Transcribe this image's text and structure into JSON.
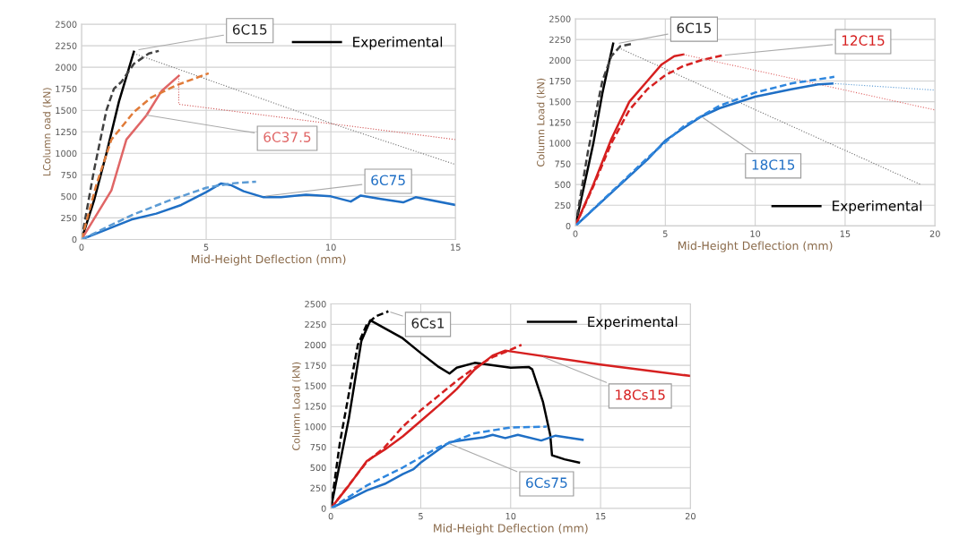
{
  "chart_data": [
    {
      "type": "line",
      "xlabel": "Mid-Height Deflection (mm)",
      "ylabel": "LColumn oad (kN)",
      "xlim": [
        0,
        15
      ],
      "xticks": [
        0,
        5,
        10,
        15
      ],
      "ylim": [
        0,
        2500
      ],
      "yticks": [
        0,
        250,
        500,
        750,
        1000,
        1250,
        1500,
        1750,
        2000,
        2250,
        2500
      ],
      "grid": true,
      "legend": "top right",
      "marker": "none",
      "series": [
        {
          "name": "Experimental",
          "color": "#000000",
          "line_style": "solid",
          "x": [
            0,
            0.5,
            1,
            1.5,
            2.1
          ],
          "values": [
            0,
            450,
            1000,
            1600,
            2180
          ]
        },
        {
          "color": "#404040",
          "line_style": "dashed",
          "x": [
            0,
            0.5,
            1,
            1.3,
            1.6,
            2.1,
            2.7,
            3.1
          ],
          "values": [
            0,
            800,
            1500,
            1750,
            1830,
            2040,
            2160,
            2190
          ]
        },
        {
          "color": "#707070",
          "line_style": "dotted",
          "x": [
            2.2,
            10,
            15
          ],
          "values": [
            2150,
            1350,
            870
          ]
        },
        {
          "color": "#e06666",
          "line_style": "solid",
          "x": [
            0,
            1.2,
            1.8,
            2.6,
            3.2,
            3.9
          ],
          "values": [
            0,
            570,
            1160,
            1440,
            1720,
            1900
          ]
        },
        {
          "color": "#e07b39",
          "line_style": "dashed",
          "x": [
            0,
            0.6,
            1.2,
            2.1,
            2.8,
            3.8,
            5.1
          ],
          "values": [
            0,
            640,
            1160,
            1480,
            1650,
            1790,
            1930
          ]
        },
        {
          "color": "#d05050",
          "line_style": "dotted",
          "x": [
            3.9,
            3.9,
            15
          ],
          "values": [
            1900,
            1570,
            1160
          ]
        },
        {
          "color": "#1f6fc5",
          "line_style": "solid",
          "x": [
            0,
            2,
            3,
            4,
            5,
            5.6,
            6,
            6.5,
            7.3,
            8,
            9,
            10,
            10.8,
            11.2,
            12,
            12.9,
            13.4,
            15
          ],
          "values": [
            0,
            230,
            300,
            400,
            550,
            650,
            630,
            560,
            490,
            490,
            520,
            500,
            440,
            510,
            470,
            430,
            490,
            400
          ]
        },
        {
          "color": "#5b9bd5",
          "line_style": "dashed",
          "x": [
            0,
            2,
            3.5,
            5,
            6,
            7
          ],
          "values": [
            0,
            280,
            450,
            600,
            650,
            670
          ]
        }
      ],
      "annotations": [
        {
          "text": "6C15",
          "x": 2.2,
          "y": 2200
        },
        {
          "text": "6C37.5",
          "x": 2.5,
          "y": 1450
        },
        {
          "text": "6C75",
          "x": 7.3,
          "y": 500
        }
      ]
    },
    {
      "type": "line",
      "xlabel": "Mid-Height Deflection (mm)",
      "ylabel": "Column Load (kN)",
      "xlim": [
        0,
        20
      ],
      "xticks": [
        0,
        5,
        10,
        15,
        20
      ],
      "ylim": [
        0,
        2500
      ],
      "yticks": [
        0,
        250,
        500,
        750,
        1000,
        1250,
        1500,
        1750,
        2000,
        2250,
        2500
      ],
      "grid": true,
      "legend": "bottom right",
      "marker": "none",
      "series": [
        {
          "name": "Experimental",
          "color": "#000000",
          "line_style": "solid",
          "x": [
            0,
            1,
            1.5,
            2.1
          ],
          "values": [
            0,
            1000,
            1600,
            2200
          ]
        },
        {
          "color": "#404040",
          "line_style": "dashed",
          "x": [
            0,
            0.7,
            1.5,
            2,
            2.5,
            3.2
          ],
          "values": [
            0,
            900,
            1750,
            2050,
            2170,
            2200
          ]
        },
        {
          "color": "#707070",
          "line_style": "dotted",
          "x": [
            2.4,
            19.2
          ],
          "values": [
            2150,
            500
          ]
        },
        {
          "color": "#d62020",
          "line_style": "solid",
          "x": [
            0,
            1,
            2,
            3,
            4,
            4.8,
            5.5,
            6
          ],
          "values": [
            0,
            500,
            1050,
            1500,
            1750,
            1950,
            2050,
            2070
          ]
        },
        {
          "color": "#d62020",
          "line_style": "dashed",
          "x": [
            0,
            1,
            2,
            3,
            4,
            5,
            6,
            7,
            8.2
          ],
          "values": [
            0,
            480,
            1000,
            1400,
            1650,
            1820,
            1930,
            2000,
            2060
          ]
        },
        {
          "color": "#e06666",
          "line_style": "dotted",
          "x": [
            6,
            20
          ],
          "values": [
            2070,
            1400
          ]
        },
        {
          "color": "#1f6fc5",
          "line_style": "solid",
          "x": [
            0,
            2,
            4,
            5,
            6,
            7,
            8,
            10,
            12,
            13.5,
            14.3
          ],
          "values": [
            0,
            400,
            800,
            1030,
            1180,
            1320,
            1420,
            1560,
            1650,
            1710,
            1720
          ]
        },
        {
          "color": "#2e86de",
          "line_style": "dashed",
          "x": [
            0,
            4,
            6,
            8,
            10,
            12,
            14.4
          ],
          "values": [
            0,
            820,
            1200,
            1450,
            1610,
            1720,
            1800
          ]
        },
        {
          "color": "#5b9bd5",
          "line_style": "dotted",
          "x": [
            14.3,
            20
          ],
          "values": [
            1720,
            1640
          ]
        }
      ],
      "annotations": [
        {
          "text": "6C15",
          "x": 2.3,
          "y": 2200
        },
        {
          "text": "12C15",
          "x": 8.2,
          "y": 2060
        },
        {
          "text": "18C15",
          "x": 7,
          "y": 1320
        }
      ]
    },
    {
      "type": "line",
      "xlabel": "Mid-Height Deflection (mm)",
      "ylabel": "Column Load (kN)",
      "xlim": [
        0,
        20
      ],
      "xticks": [
        0,
        5,
        10,
        15,
        20
      ],
      "ylim": [
        0,
        2500
      ],
      "yticks": [
        0,
        250,
        500,
        750,
        1000,
        1250,
        1500,
        1750,
        2000,
        2250,
        2500
      ],
      "grid": true,
      "legend": "top right",
      "marker": "none",
      "series": [
        {
          "name": "Experimental",
          "color": "#000000",
          "line_style": "solid",
          "x": [
            0,
            1,
            1.7,
            2.2,
            4,
            5,
            6,
            6.6,
            7,
            8,
            9,
            10,
            11,
            11.2,
            11.8,
            12.2,
            12.3,
            13,
            13.8
          ],
          "values": [
            0,
            1100,
            2050,
            2300,
            2080,
            1900,
            1730,
            1650,
            1720,
            1780,
            1750,
            1720,
            1730,
            1700,
            1300,
            900,
            650,
            600,
            560
          ]
        },
        {
          "color": "#000000",
          "line_style": "dashed",
          "x": [
            0,
            0.5,
            1,
            1.5,
            2,
            2.5,
            3.2
          ],
          "values": [
            0,
            800,
            1400,
            2000,
            2250,
            2350,
            2410
          ]
        },
        {
          "color": "#d62020",
          "line_style": "solid",
          "x": [
            0,
            1,
            2,
            3,
            4,
            5,
            6,
            7,
            8,
            9,
            9.7,
            15,
            20
          ],
          "values": [
            0,
            280,
            580,
            720,
            880,
            1070,
            1260,
            1460,
            1700,
            1870,
            1930,
            1760,
            1620
          ]
        },
        {
          "color": "#d62020",
          "line_style": "dashed",
          "x": [
            0,
            2,
            3,
            4,
            5,
            6,
            7,
            8,
            9,
            10,
            10.6
          ],
          "values": [
            0,
            570,
            750,
            1000,
            1200,
            1380,
            1560,
            1720,
            1850,
            1940,
            2000
          ]
        },
        {
          "color": "#1f6fc5",
          "line_style": "solid",
          "x": [
            0,
            2,
            3,
            4,
            4.6,
            5,
            6,
            6.6,
            7.5,
            8.5,
            9,
            9.7,
            10.4,
            11.7,
            12.5,
            14
          ],
          "values": [
            0,
            220,
            300,
            420,
            480,
            560,
            720,
            810,
            840,
            870,
            900,
            860,
            900,
            830,
            890,
            840
          ]
        },
        {
          "color": "#2e86de",
          "line_style": "dashed",
          "x": [
            0,
            2,
            4,
            6,
            8,
            10,
            12
          ],
          "values": [
            0,
            280,
            500,
            750,
            920,
            990,
            1000
          ]
        }
      ],
      "annotations": [
        {
          "text": "6Cs1",
          "x": 3.2,
          "y": 2410
        },
        {
          "text": "18Cs15",
          "x": 11.7,
          "y": 1860
        },
        {
          "text": "6Cs75",
          "x": 6.5,
          "y": 800
        }
      ]
    }
  ]
}
